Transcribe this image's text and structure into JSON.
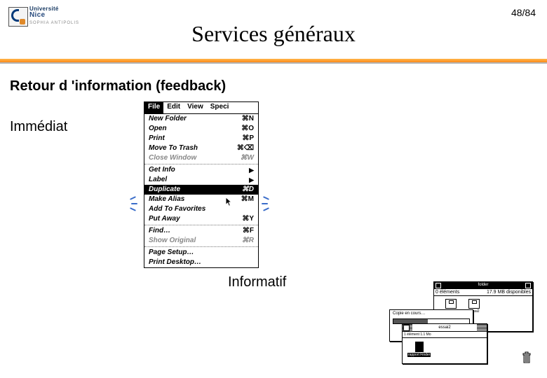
{
  "page": {
    "number": "48/84"
  },
  "logo": {
    "line1": "Université",
    "line2": "Nice",
    "sub": "SOPHIA ANTIPOLIS"
  },
  "title": "Services généraux",
  "heading": "Retour d 'information (feedback)",
  "labels": {
    "immediate": "Immédiat",
    "informatif": "Informatif"
  },
  "menu": {
    "bar": {
      "file": "File",
      "edit": "Edit",
      "view": "View",
      "special": "Speci"
    },
    "items": [
      {
        "label": "New Folder",
        "short": "⌘N",
        "kind": "item"
      },
      {
        "label": "Open",
        "short": "⌘O",
        "kind": "item"
      },
      {
        "label": "Print",
        "short": "⌘P",
        "kind": "item"
      },
      {
        "label": "Move To Trash",
        "short": "⌘⌫",
        "kind": "item"
      },
      {
        "label": "Close Window",
        "short": "⌘W",
        "kind": "disabled"
      },
      {
        "kind": "sep"
      },
      {
        "label": "Get Info",
        "short": "▶",
        "kind": "sub"
      },
      {
        "label": "Label",
        "short": "▶",
        "kind": "sub"
      },
      {
        "label": "Duplicate",
        "short": "⌘D",
        "kind": "selected"
      },
      {
        "label": "Make Alias",
        "short": "⌘M",
        "kind": "item"
      },
      {
        "label": "Add To Favorites",
        "short": "",
        "kind": "item"
      },
      {
        "label": "Put Away",
        "short": "⌘Y",
        "kind": "item"
      },
      {
        "kind": "sep"
      },
      {
        "label": "Find…",
        "short": "⌘F",
        "kind": "item"
      },
      {
        "label": "Show Original",
        "short": "⌘R",
        "kind": "disabled"
      },
      {
        "kind": "sep"
      },
      {
        "label": "Page Setup…",
        "short": "",
        "kind": "item"
      },
      {
        "label": "Print Desktop…",
        "short": "",
        "kind": "item"
      }
    ]
  },
  "copy": {
    "back_title": "folder",
    "back_sub_left": "0 éléments",
    "back_sub_right": "17.9 MB disponibles",
    "disks": {
      "a": "rapport Finder",
      "b": "essai2"
    },
    "progress": {
      "text": "Copie en cours…"
    },
    "front": {
      "title": "essai2",
      "info": "1 élément   1.1 Mo",
      "file": "rapport Finder"
    }
  },
  "colors": {
    "accent_orange": "#ff8a1a",
    "accent_blue": "#3a6cc9",
    "logo_blue": "#284b7e"
  }
}
